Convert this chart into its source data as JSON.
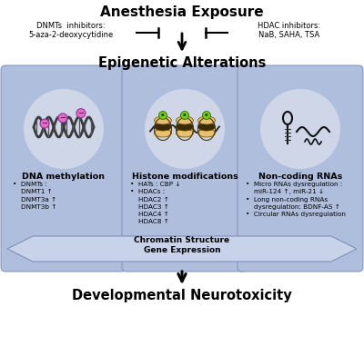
{
  "title_top": "Anesthesia Exposure",
  "title_mid": "Epigenetic Alterations",
  "title_bot": "Developmental Neurotoxicity",
  "dnmt_label": "DNMTs  inhibitors:\n5-aza-2-deoxycytidine",
  "hdac_label": "HDAC inhibitors:\nNaB, SAHA, TSA",
  "box1_title": "DNA methylation",
  "box1_text": "•  DNMTs :\n    DNMT1 ↑\n    DNMT3a ↑\n    DNMT3b ↑",
  "box2_title": "Histone modifications",
  "box2_text": "•  HATs : CBP ↓\n•  HDACs :\n    HDAC2 ↑\n    HDAC3 ↑\n    HDAC4 ↑\n    HDAC8 ↑",
  "box3_title": "Non-coding RNAs",
  "box3_text": "•  Micro RNAs dysregulation :\n    miR-124 ↑, miR-21 ↓\n•  Long non-coding RNAs\n    dysregulation: BDNF-AS ↑\n•  Circular RNAs dysregulation",
  "arrow_label": "Chromatin Structure\nGene Expression",
  "bg_color": "#ffffff",
  "box_fill": "#b0bedd",
  "box_edge": "#8090bb",
  "circle_fill": "#ced6e8",
  "arrow_fill": "#c8d2e8",
  "arrow_edge": "#8090bb"
}
